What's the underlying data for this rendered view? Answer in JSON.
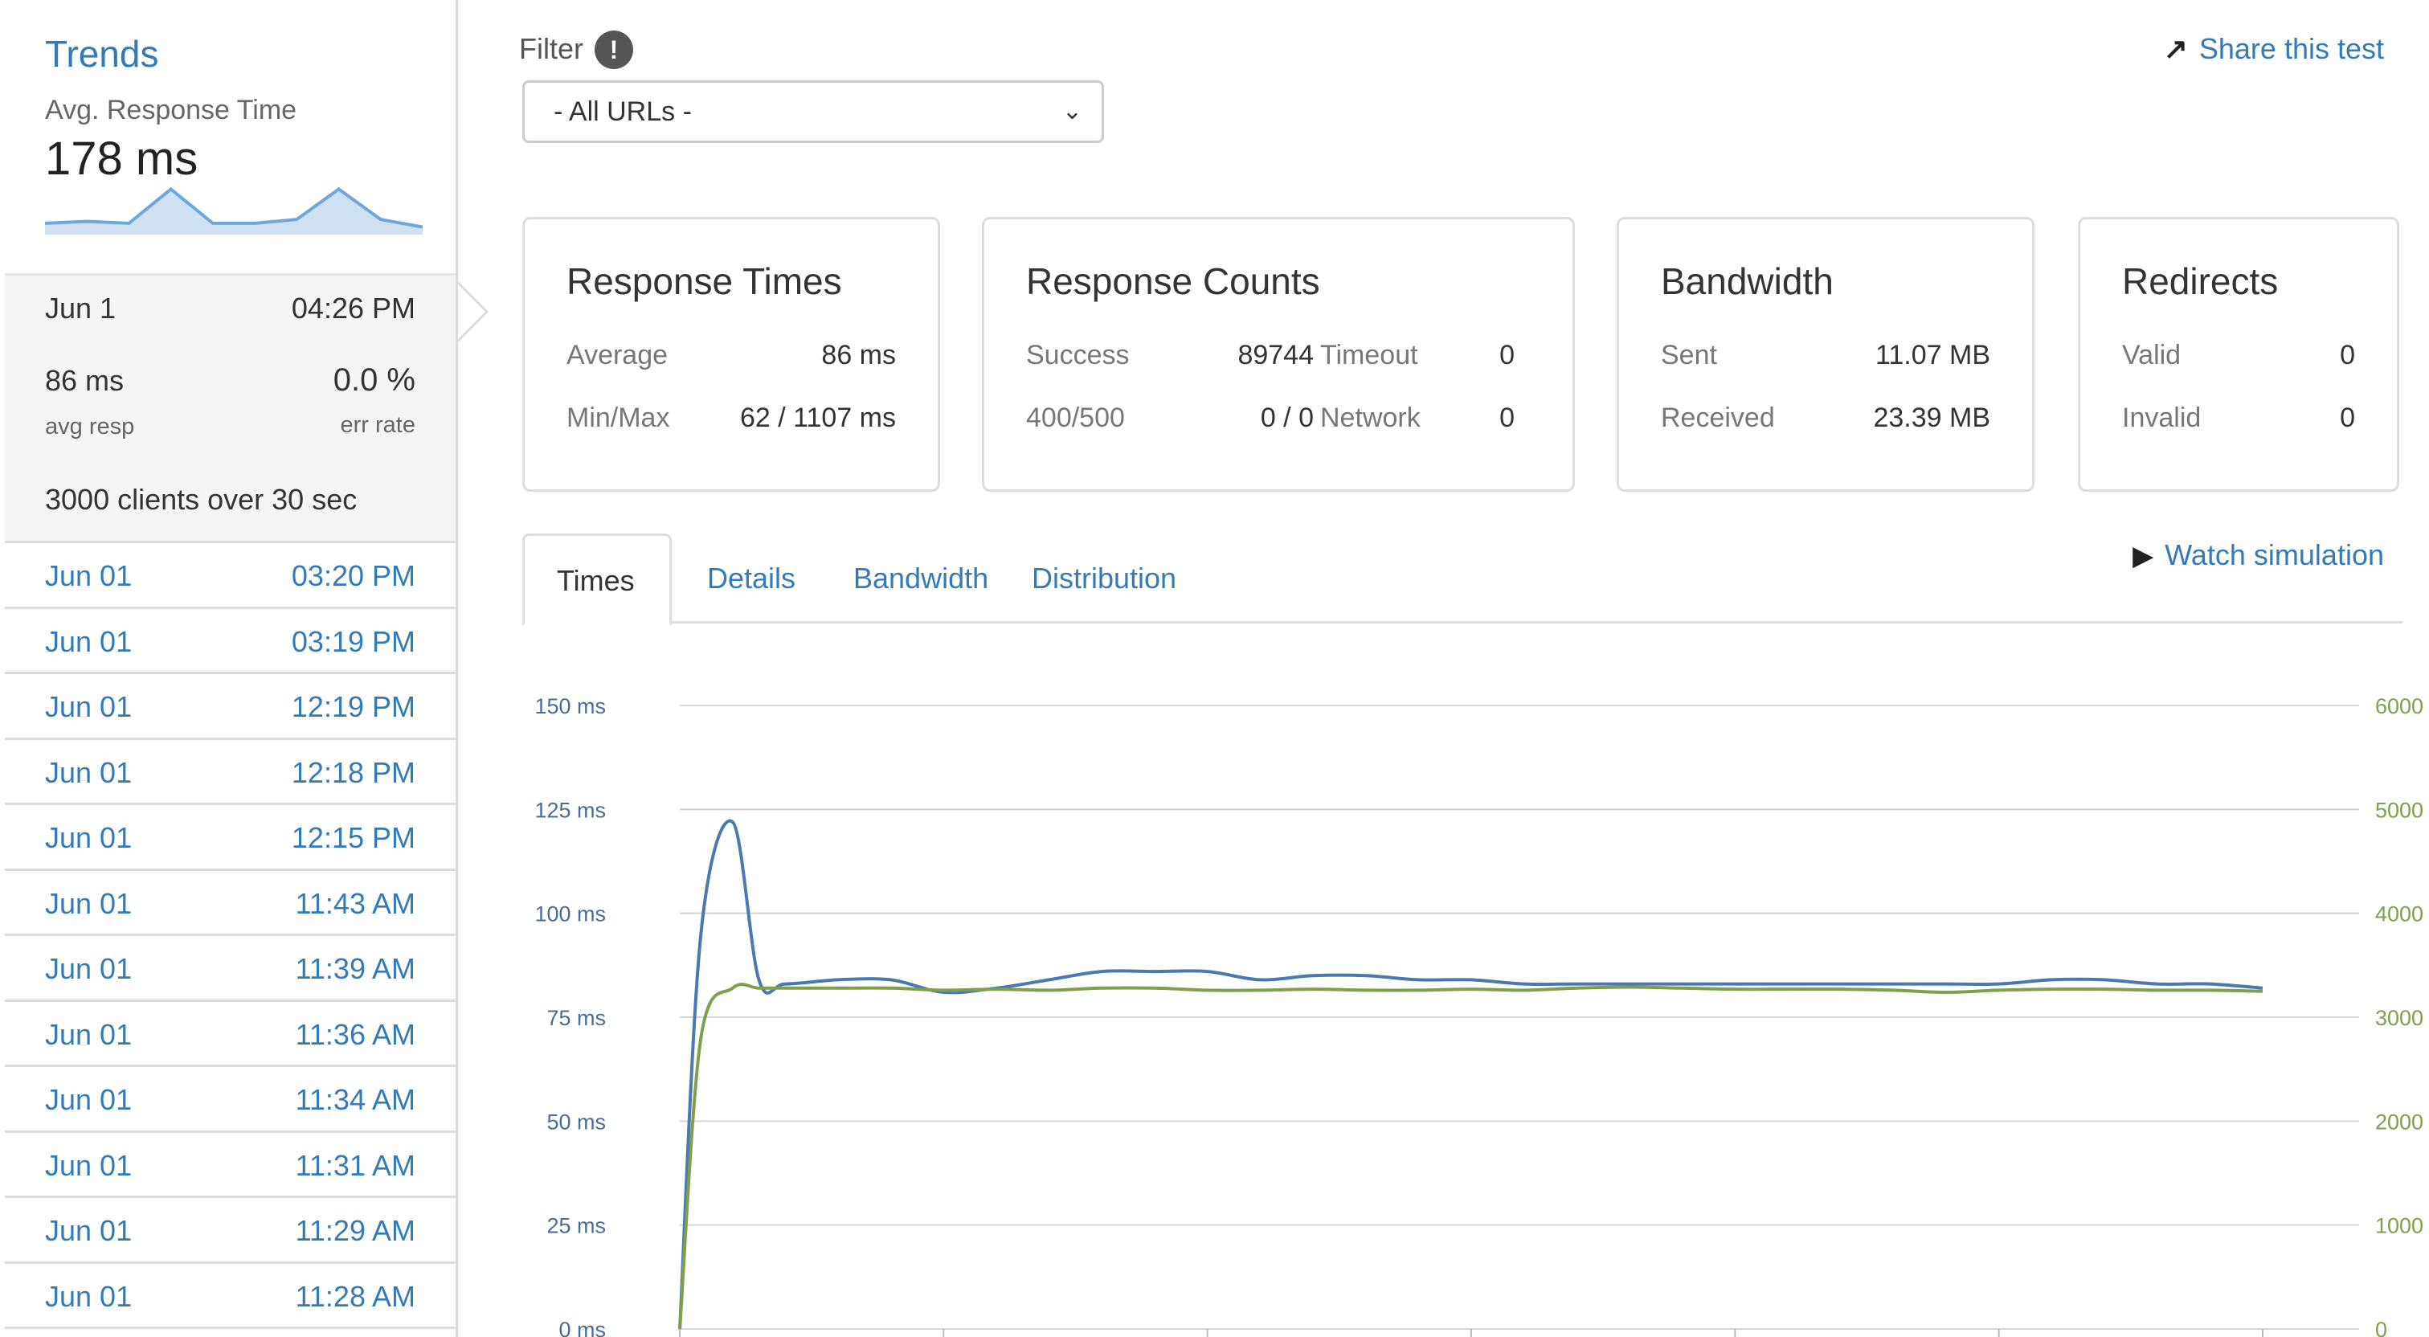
{
  "sidebar": {
    "trends": {
      "title": "Trends",
      "subtitle": "Avg. Response Time",
      "value": "178 ms",
      "sparkline": [
        3,
        3.5,
        3,
        12,
        3,
        3,
        4,
        12,
        4,
        2
      ]
    },
    "current": {
      "date": "Jun 1",
      "time": "04:26 PM",
      "avg_resp": "86 ms",
      "avg_resp_label": "avg resp",
      "err_rate": "0.0 %",
      "err_rate_label": "err rate",
      "clients_text": "3000 clients over 30 sec"
    },
    "history": [
      {
        "date": "Jun 01",
        "time": "03:20 PM"
      },
      {
        "date": "Jun 01",
        "time": "03:19 PM"
      },
      {
        "date": "Jun 01",
        "time": "12:19 PM"
      },
      {
        "date": "Jun 01",
        "time": "12:18 PM"
      },
      {
        "date": "Jun 01",
        "time": "12:15 PM"
      },
      {
        "date": "Jun 01",
        "time": "11:43 AM"
      },
      {
        "date": "Jun 01",
        "time": "11:39 AM"
      },
      {
        "date": "Jun 01",
        "time": "11:36 AM"
      },
      {
        "date": "Jun 01",
        "time": "11:34 AM"
      },
      {
        "date": "Jun 01",
        "time": "11:31 AM"
      },
      {
        "date": "Jun 01",
        "time": "11:29 AM"
      },
      {
        "date": "Jun 01",
        "time": "11:28 AM"
      }
    ]
  },
  "filter": {
    "label": "Filter",
    "info_icon": "info-icon",
    "selected": "- All URLs -"
  },
  "share": {
    "label": "Share this test",
    "icon": "share-icon"
  },
  "cards": {
    "response_times": {
      "title": "Response Times",
      "average_label": "Average",
      "average": "86 ms",
      "minmax_label": "Min/Max",
      "minmax": "62 / 1107 ms"
    },
    "response_counts": {
      "title": "Response Counts",
      "success_label": "Success",
      "success": "89744",
      "timeout_label": "Timeout",
      "timeout": "0",
      "errors_label": "400/500",
      "errors": "0 / 0",
      "network_label": "Network",
      "network": "0"
    },
    "bandwidth": {
      "title": "Bandwidth",
      "sent_label": "Sent",
      "sent": "11.07 MB",
      "received_label": "Received",
      "received": "23.39 MB"
    },
    "redirects": {
      "title": "Redirects",
      "valid_label": "Valid",
      "valid": "0",
      "invalid_label": "Invalid",
      "invalid": "0"
    }
  },
  "tabs": [
    "Times",
    "Details",
    "Bandwidth",
    "Distribution"
  ],
  "watch": {
    "label": "Watch simulation",
    "icon": "play-icon"
  },
  "colors": {
    "link": "#337ab7",
    "response_line": "#4a78b0",
    "clients_line": "#7ea04d",
    "grid": "#d5d5d5"
  },
  "chart_data": {
    "type": "line",
    "title": "",
    "x_label": "",
    "y_left": {
      "ticks": [
        "150 ms",
        "125 ms",
        "100 ms",
        "75 ms",
        "50 ms",
        "25 ms",
        "0 ms"
      ],
      "range": [
        0,
        150
      ]
    },
    "y_right": {
      "ticks": [
        "6000",
        "5000",
        "4000",
        "3000",
        "2000",
        "1000",
        "0"
      ],
      "range": [
        0,
        6000
      ]
    },
    "grid": true,
    "x": [
      0,
      0.4,
      1,
      1.5,
      2,
      3,
      4,
      5,
      6,
      7,
      8,
      9,
      10,
      11,
      12,
      13,
      14,
      15,
      16,
      17,
      18,
      19,
      20,
      21,
      22,
      23,
      24,
      25,
      26,
      27,
      28,
      29,
      30
    ],
    "series": [
      {
        "axis": "left",
        "color": "#4a78b0",
        "values": [
          0,
          95,
          122,
          84,
          83,
          84,
          84,
          81,
          82,
          84,
          86,
          86,
          86,
          84,
          85,
          85,
          84,
          84,
          83,
          83,
          83,
          83,
          83,
          83,
          83,
          83,
          83,
          83,
          84,
          84,
          83,
          83,
          82
        ]
      },
      {
        "axis": "right",
        "color": "#7ea04d",
        "values": [
          0,
          2800,
          3280,
          3280,
          3280,
          3280,
          3280,
          3260,
          3270,
          3260,
          3280,
          3280,
          3260,
          3260,
          3270,
          3260,
          3260,
          3270,
          3260,
          3280,
          3290,
          3280,
          3270,
          3270,
          3270,
          3260,
          3240,
          3260,
          3270,
          3270,
          3260,
          3260,
          3250
        ]
      }
    ]
  }
}
